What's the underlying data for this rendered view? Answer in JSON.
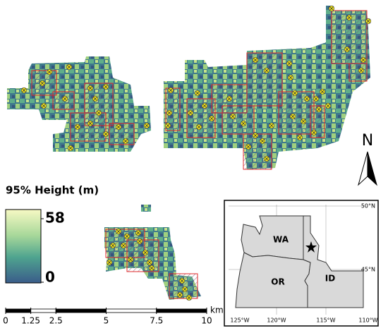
{
  "legend": {
    "title": "95% Height (m)",
    "max": 58,
    "min": 0
  },
  "scale_bar": {
    "ticks": [
      0,
      1.25,
      2.5,
      5,
      7.5,
      10
    ],
    "unit": "km"
  },
  "north_arrow": "N",
  "inset": {
    "states": [
      "WA",
      "OR",
      "ID"
    ],
    "lat_labels": [
      "50°N",
      "45°N"
    ],
    "lon_labels": [
      "125°W",
      "120°W",
      "115°W",
      "110°W"
    ]
  }
}
